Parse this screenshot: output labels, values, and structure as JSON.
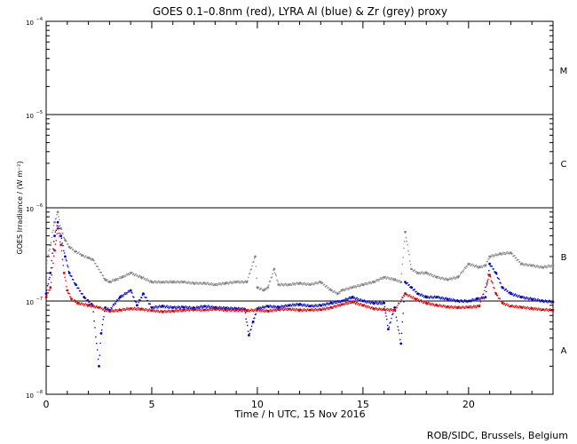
{
  "chart_data": {
    "type": "scatter",
    "title": "GOES 0.1–0.8nm (red), LYRA Al (blue) & Zr (grey) proxy",
    "xlabel": "Time / h UTC, 15 Nov 2016",
    "ylabel": "GOES Irradiance / (W m⁻²)",
    "credit": "ROB/SIDC, Brussels, Belgium",
    "xlim": [
      0,
      24
    ],
    "ylim": [
      1e-08,
      0.0001
    ],
    "yscale": "log",
    "x_ticks": [
      0,
      5,
      10,
      15,
      20
    ],
    "y_ticks": [
      {
        "value": 1e-08,
        "base": "10",
        "exp": "−8"
      },
      {
        "value": 1e-07,
        "base": "10",
        "exp": "−7"
      },
      {
        "value": 1e-06,
        "base": "10",
        "exp": "−6"
      },
      {
        "value": 1e-05,
        "base": "10",
        "exp": "−5"
      },
      {
        "value": 0.0001,
        "base": "10",
        "exp": "−4"
      }
    ],
    "flare_class_lines": [
      1e-07,
      1e-06,
      1e-05
    ],
    "flare_classes": [
      {
        "label": "A",
        "value": 3e-08
      },
      {
        "label": "B",
        "value": 3e-07
      },
      {
        "label": "C",
        "value": 3e-06
      },
      {
        "label": "M",
        "value": 3e-05
      }
    ],
    "series": [
      {
        "name": "GOES 0.1–0.8nm",
        "color": "#e00000",
        "x": [
          0.0,
          0.2,
          0.4,
          0.55,
          0.7,
          0.85,
          1.0,
          1.2,
          1.5,
          2.0,
          2.5,
          3.0,
          3.5,
          4.0,
          4.5,
          5.0,
          5.5,
          6.0,
          6.5,
          7.0,
          7.5,
          8.0,
          8.5,
          9.0,
          9.5,
          10.0,
          10.5,
          11.0,
          11.5,
          12.0,
          12.5,
          13.0,
          13.5,
          14.0,
          14.5,
          15.0,
          15.5,
          16.0,
          16.5,
          17.0,
          17.5,
          18.0,
          18.5,
          19.0,
          19.5,
          20.0,
          20.5,
          21.0,
          21.3,
          21.6,
          22.0,
          22.5,
          23.0,
          23.5,
          24.0
        ],
        "y": [
          1.1e-07,
          1.4e-07,
          3.5e-07,
          6e-07,
          4e-07,
          2e-07,
          1.3e-07,
          1.05e-07,
          9.5e-08,
          9e-08,
          8.5e-08,
          7.8e-08,
          8e-08,
          8.3e-08,
          8.2e-08,
          7.9e-08,
          7.7e-08,
          7.8e-08,
          8e-08,
          8.1e-08,
          8e-08,
          8.2e-08,
          8e-08,
          8e-08,
          7.9e-08,
          8e-08,
          7.8e-08,
          8.1e-08,
          8.2e-08,
          8e-08,
          8e-08,
          8.1e-08,
          8.5e-08,
          9.2e-08,
          9.8e-08,
          9e-08,
          8.3e-08,
          8.1e-08,
          8e-08,
          1.2e-07,
          1.05e-07,
          9.5e-08,
          9e-08,
          8.7e-08,
          8.5e-08,
          8.6e-08,
          8.8e-08,
          1.9e-07,
          1.2e-07,
          9.5e-08,
          8.8e-08,
          8.6e-08,
          8.3e-08,
          8.1e-08,
          8e-08
        ]
      },
      {
        "name": "LYRA Al",
        "color": "#0000cc",
        "x": [
          0.0,
          0.2,
          0.4,
          0.55,
          0.7,
          0.9,
          1.1,
          1.4,
          1.8,
          2.2,
          2.5,
          2.6,
          2.8,
          3.0,
          3.5,
          4.0,
          4.3,
          4.6,
          5.0,
          5.5,
          6.0,
          6.5,
          7.0,
          7.5,
          8.0,
          8.5,
          9.0,
          9.4,
          9.6,
          9.8,
          10.0,
          10.5,
          11.0,
          11.5,
          12.0,
          12.5,
          13.0,
          13.5,
          14.0,
          14.5,
          15.0,
          15.5,
          16.0,
          16.2,
          16.5,
          16.8,
          17.0,
          17.3,
          17.6,
          18.0,
          18.5,
          19.0,
          19.5,
          20.0,
          20.4,
          20.8,
          21.0,
          21.3,
          21.6,
          22.0,
          22.5,
          23.0,
          23.5,
          24.0
        ],
        "y": [
          1.2e-07,
          2e-07,
          5e-07,
          7e-07,
          5e-07,
          3e-07,
          2e-07,
          1.5e-07,
          1.1e-07,
          9e-08,
          2e-08,
          4.5e-08,
          8.5e-08,
          8e-08,
          1.1e-07,
          1.3e-07,
          9e-08,
          1.2e-07,
          8.5e-08,
          8.8e-08,
          8.5e-08,
          8.6e-08,
          8.4e-08,
          8.8e-08,
          8.5e-08,
          8.4e-08,
          8.3e-08,
          8.2e-08,
          4.3e-08,
          6e-08,
          8.3e-08,
          8.8e-08,
          8.6e-08,
          9e-08,
          9.2e-08,
          8.8e-08,
          9e-08,
          9.5e-08,
          1e-07,
          1.1e-07,
          1e-07,
          9.5e-08,
          9.5e-08,
          5e-08,
          8.5e-08,
          3.5e-08,
          1.6e-07,
          1.4e-07,
          1.2e-07,
          1.1e-07,
          1.1e-07,
          1.05e-07,
          1e-07,
          1e-07,
          1.05e-07,
          1.1e-07,
          2.5e-07,
          2e-07,
          1.4e-07,
          1.2e-07,
          1.1e-07,
          1.05e-07,
          1e-07,
          9.8e-08
        ]
      },
      {
        "name": "LYRA Zr",
        "color": "#888888",
        "x": [
          0.0,
          0.2,
          0.4,
          0.55,
          0.7,
          0.9,
          1.1,
          1.4,
          1.7,
          2.0,
          2.2,
          2.8,
          3.0,
          3.3,
          3.6,
          4.0,
          4.5,
          5.0,
          5.5,
          6.0,
          6.5,
          7.0,
          7.5,
          8.0,
          8.5,
          9.0,
          9.5,
          9.9,
          10.0,
          10.3,
          10.5,
          10.8,
          11.0,
          11.5,
          12.0,
          12.5,
          13.0,
          13.5,
          13.8,
          14.0,
          14.5,
          15.0,
          15.5,
          16.0,
          16.5,
          16.8,
          17.0,
          17.3,
          17.6,
          18.0,
          18.5,
          19.0,
          19.5,
          20.0,
          20.5,
          20.8,
          21.0,
          21.5,
          22.0,
          22.5,
          23.0,
          23.5,
          24.0
        ],
        "y": [
          2.5e-07,
          4e-07,
          7e-07,
          9e-07,
          6e-07,
          4.5e-07,
          3.8e-07,
          3.4e-07,
          3.1e-07,
          2.9e-07,
          2.8e-07,
          1.7e-07,
          1.6e-07,
          1.7e-07,
          1.8e-07,
          2e-07,
          1.8e-07,
          1.6e-07,
          1.6e-07,
          1.6e-07,
          1.6e-07,
          1.55e-07,
          1.55e-07,
          1.5e-07,
          1.55e-07,
          1.6e-07,
          1.6e-07,
          3e-07,
          1.4e-07,
          1.3e-07,
          1.4e-07,
          2.2e-07,
          1.5e-07,
          1.5e-07,
          1.55e-07,
          1.5e-07,
          1.6e-07,
          1.3e-07,
          1.2e-07,
          1.3e-07,
          1.4e-07,
          1.5e-07,
          1.6e-07,
          1.8e-07,
          1.7e-07,
          1.6e-07,
          5.5e-07,
          2.2e-07,
          2e-07,
          2e-07,
          1.8e-07,
          1.7e-07,
          1.8e-07,
          2.5e-07,
          2.3e-07,
          2.4e-07,
          3e-07,
          3.2e-07,
          3.3e-07,
          2.5e-07,
          2.4e-07,
          2.3e-07,
          2.4e-07
        ]
      }
    ]
  }
}
